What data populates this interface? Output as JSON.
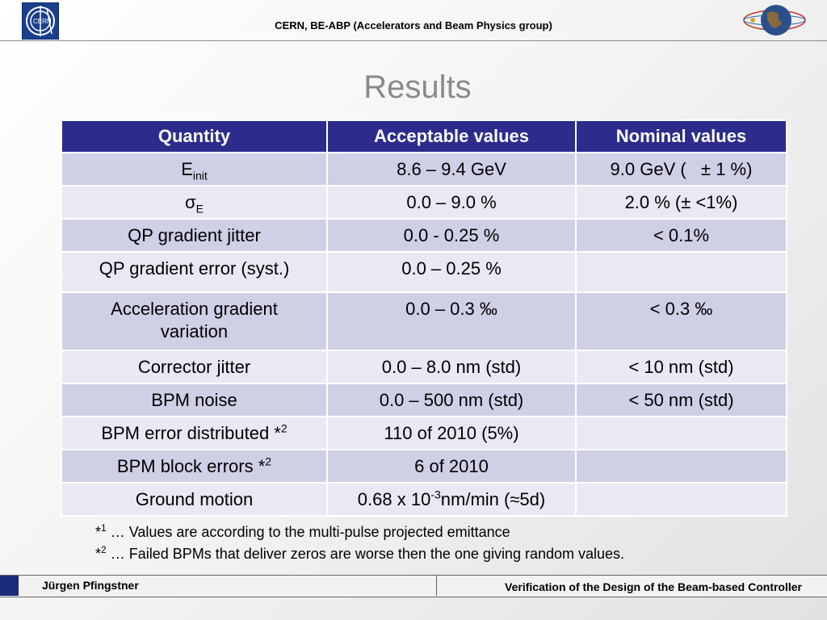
{
  "header": {
    "title": "CERN, BE-ABP (Accelerators and Beam Physics group)",
    "logo_left_text": "CERN",
    "logo_left_icon": "cern-logo",
    "logo_right_icon": "globe-logo"
  },
  "slide": {
    "title": "Results"
  },
  "table": {
    "headers": [
      "Quantity",
      "Acceptable values",
      "Nominal values"
    ],
    "rows": [
      {
        "quantity": "E",
        "quantity_sub": "init",
        "acceptable": "8.6 – 9.4 GeV",
        "nominal": "9.0 GeV (   ± 1 %)"
      },
      {
        "quantity": "σ",
        "quantity_sub": "E",
        "acceptable": "0.0 – 9.0 %",
        "nominal": "2.0 % (± <1%)"
      },
      {
        "quantity": "QP gradient jitter",
        "acceptable": "0.0 - 0.25 %",
        "nominal": "< 0.1%"
      },
      {
        "quantity": "QP gradient error (syst.)",
        "acceptable": "0.0 – 0.25 %",
        "nominal": ""
      },
      {
        "quantity": "Acceleration gradient variation",
        "acceptable": "0.0 – 0.3 ‰",
        "nominal": "< 0.3 ‰"
      },
      {
        "quantity": "Corrector jitter",
        "acceptable": "0.0 – 8.0 nm (std)",
        "nominal": "< 10 nm (std)"
      },
      {
        "quantity": "BPM noise",
        "acceptable": "0.0 – 500 nm (std)",
        "nominal": "< 50 nm (std)"
      },
      {
        "quantity": "BPM error distributed *",
        "quantity_sup": "2",
        "acceptable": "110 of 2010 (5%)",
        "nominal": ""
      },
      {
        "quantity": "BPM block errors *",
        "quantity_sup": "2",
        "acceptable": "6 of 2010",
        "nominal": ""
      },
      {
        "quantity": "Ground motion",
        "acceptable_prefix": "0.68 x 10",
        "acceptable_sup": "-3",
        "acceptable_suffix": "nm/min (",
        "acceptable_approx": "≈",
        "acceptable_tail": "5d)",
        "nominal": ""
      }
    ]
  },
  "notes": [
    {
      "mark": "*",
      "sup": "1",
      "text": " … Values are according to the multi-pulse projected emittance"
    },
    {
      "mark": "*",
      "sup": "2",
      "text": " … Failed BPMs that deliver zeros are worse then the one giving random values."
    }
  ],
  "footer": {
    "author": "Jürgen Pfingstner",
    "talk": "Verification of the Design of the Beam-based Controller"
  },
  "colors": {
    "header_row": "#2b2c8c",
    "row_odd": "#cfd0e6",
    "row_even": "#e9e9f3",
    "title": "#8a8a8a"
  }
}
